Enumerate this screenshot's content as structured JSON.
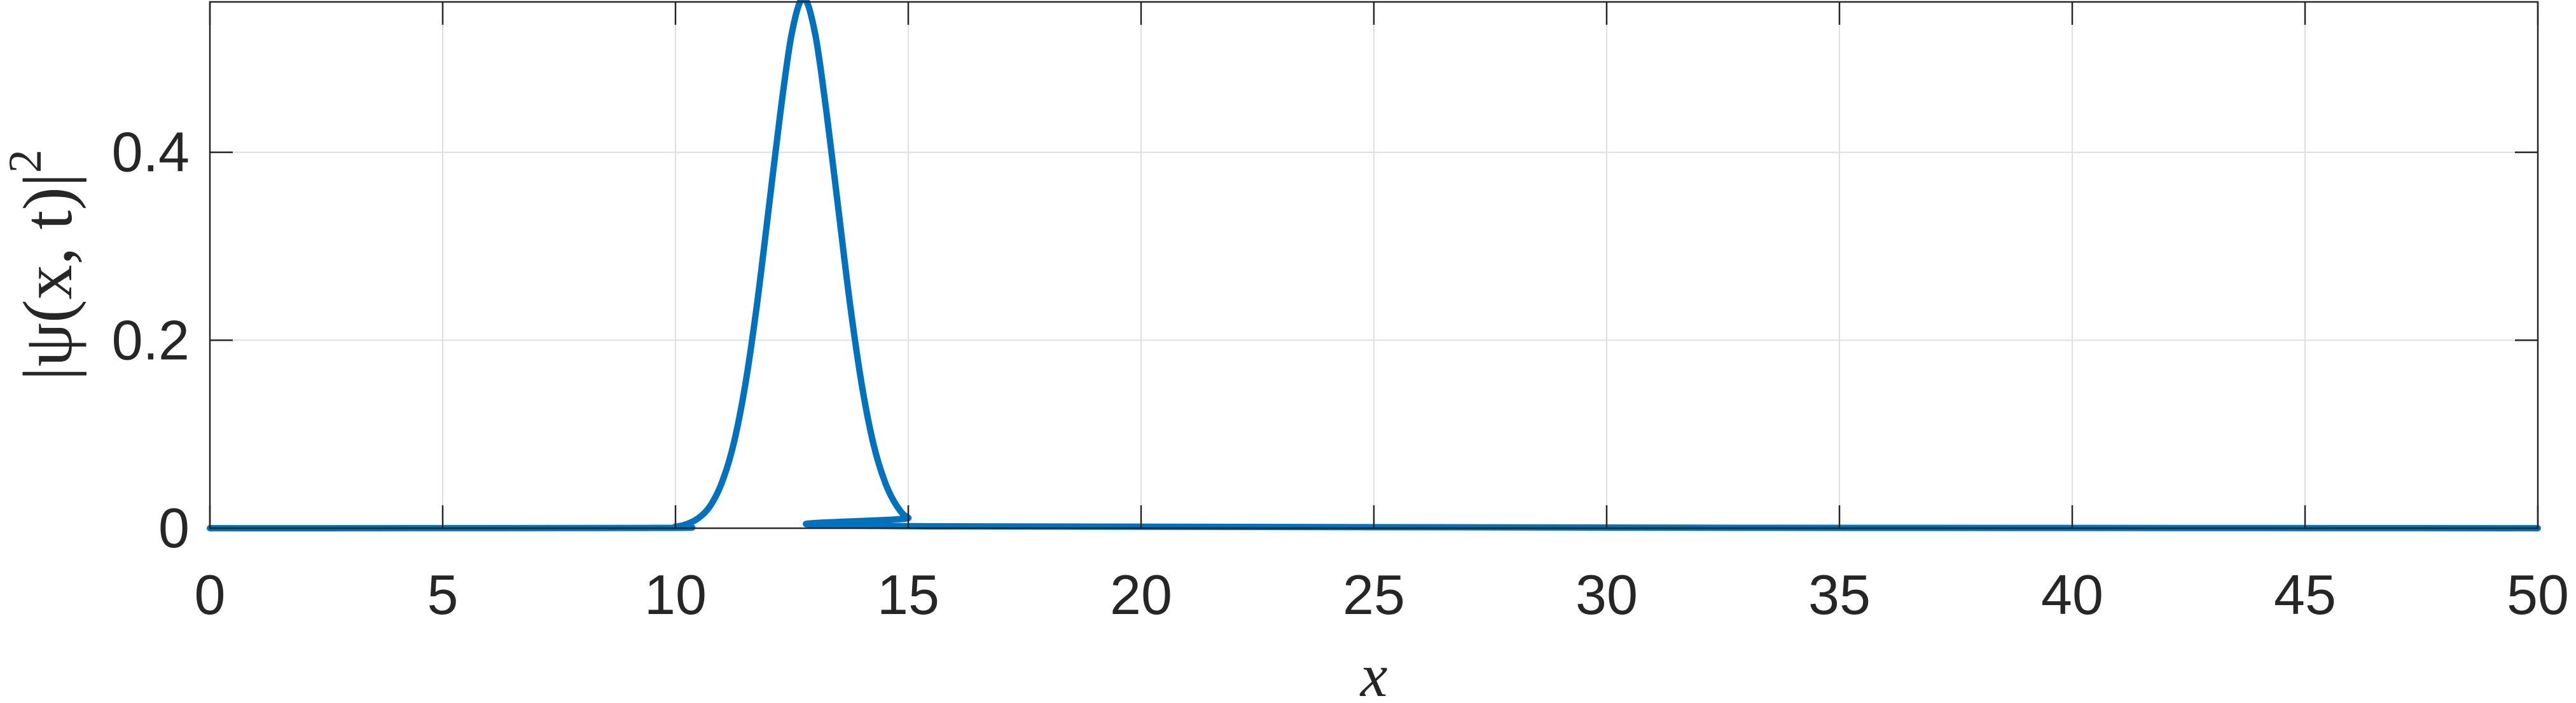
{
  "chart_data": {
    "type": "line",
    "title": "",
    "xlabel": "x",
    "ylabel": "|ψ(x, t)|",
    "ylabel_exponent": "2",
    "xlim": [
      0,
      50
    ],
    "ylim": [
      0,
      0.56
    ],
    "grid": true,
    "x_ticks": [
      0,
      5,
      10,
      15,
      20,
      25,
      30,
      35,
      40,
      45,
      50
    ],
    "x_tick_labels": [
      "0",
      "5",
      "10",
      "15",
      "20",
      "25",
      "30",
      "35",
      "40",
      "45",
      "50"
    ],
    "y_ticks": [
      0,
      0.2,
      0.4
    ],
    "y_tick_labels": [
      "0",
      "0.2",
      "0.4"
    ],
    "series": [
      {
        "color": "#0072BD",
        "x": [
          0,
          9.5,
          10.0,
          10.25,
          10.5,
          10.75,
          11.0,
          11.25,
          11.5,
          11.75,
          12.0,
          12.25,
          12.5,
          12.75,
          13.0,
          13.25,
          13.5,
          13.75,
          14.0,
          14.25,
          14.5,
          14.75,
          15.0,
          15.5,
          50
        ],
        "y": [
          0,
          0.0003,
          0.0017,
          0.0045,
          0.011,
          0.024,
          0.049,
          0.09,
          0.153,
          0.238,
          0.339,
          0.441,
          0.527,
          0.564,
          0.526,
          0.44,
          0.339,
          0.238,
          0.153,
          0.09,
          0.049,
          0.024,
          0.011,
          0.002,
          0
        ]
      }
    ]
  }
}
